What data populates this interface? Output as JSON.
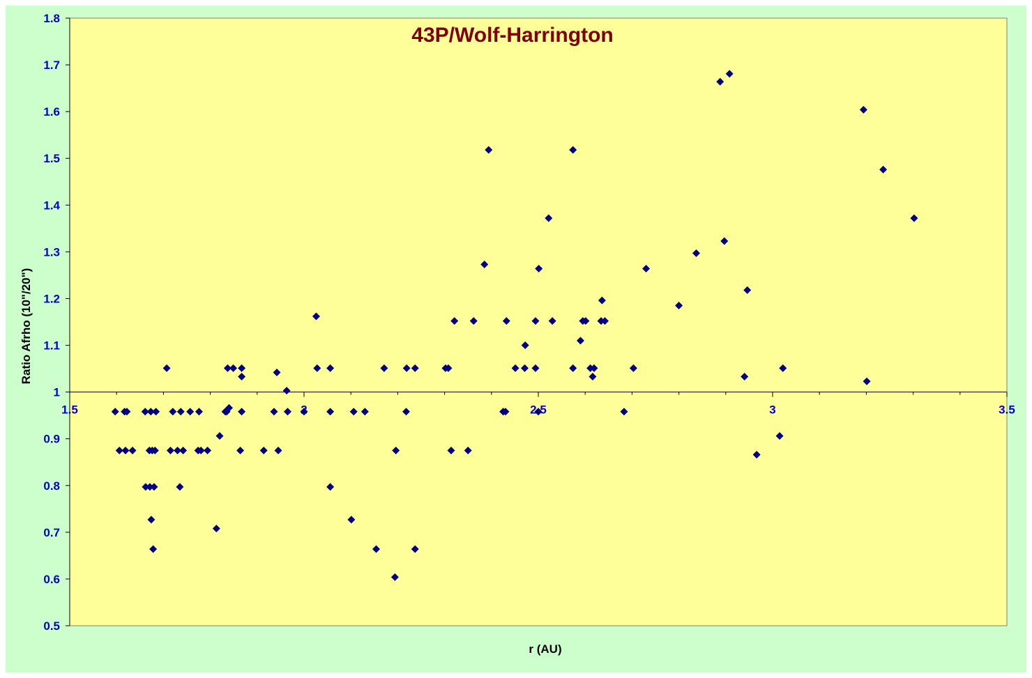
{
  "chart_data": {
    "type": "scatter",
    "title": "43P/Wolf-Harrington",
    "xlabel": "r (AU)",
    "ylabel": "Ratio Afrho (10\"/20\")",
    "xlim": [
      1.5,
      3.5
    ],
    "ylim": [
      0.5,
      1.8
    ],
    "x_ticks": [
      "1.5",
      "2",
      "2.5",
      "3",
      "3.5"
    ],
    "y_ticks": [
      "0.5",
      "0.6",
      "0.7",
      "0.8",
      "0.9",
      "1",
      "1.1",
      "1.2",
      "1.3",
      "1.4",
      "1.5",
      "1.6",
      "1.7",
      "1.8"
    ],
    "x_axis_crosses_y_at": 1.0,
    "grid": false,
    "legend": "none",
    "colors": {
      "marker": "#000080",
      "plot_background": "#ffff99",
      "chart_background": "#ccffcc",
      "title": "#800000",
      "tick_labels": "#0000cc"
    },
    "series": [
      {
        "marker": "diamond",
        "points": [
          [
            1.597,
            0.958
          ],
          [
            1.606,
            0.875
          ],
          [
            1.617,
            0.958
          ],
          [
            1.619,
            0.875
          ],
          [
            1.622,
            0.958
          ],
          [
            1.634,
            0.875
          ],
          [
            1.661,
            0.958
          ],
          [
            1.662,
            0.797
          ],
          [
            1.67,
            0.875
          ],
          [
            1.671,
            0.797
          ],
          [
            1.673,
            0.958
          ],
          [
            1.674,
            0.727
          ],
          [
            1.676,
            0.875
          ],
          [
            1.678,
            0.664
          ],
          [
            1.68,
            0.797
          ],
          [
            1.682,
            0.875
          ],
          [
            1.684,
            0.958
          ],
          [
            1.707,
            1.051
          ],
          [
            1.715,
            0.875
          ],
          [
            1.72,
            0.958
          ],
          [
            1.73,
            0.875
          ],
          [
            1.735,
            0.797
          ],
          [
            1.737,
            0.958
          ],
          [
            1.742,
            0.875
          ],
          [
            1.757,
            0.958
          ],
          [
            1.774,
            0.875
          ],
          [
            1.776,
            0.958
          ],
          [
            1.78,
            0.875
          ],
          [
            1.794,
            0.875
          ],
          [
            1.813,
            0.708
          ],
          [
            1.82,
            0.906
          ],
          [
            1.832,
            0.958
          ],
          [
            1.835,
            0.958
          ],
          [
            1.837,
            1.051
          ],
          [
            1.84,
            0.966
          ],
          [
            1.849,
            1.051
          ],
          [
            1.864,
            0.875
          ],
          [
            1.867,
            1.033
          ],
          [
            1.867,
            1.051
          ],
          [
            1.867,
            0.958
          ],
          [
            1.914,
            0.875
          ],
          [
            1.936,
            0.958
          ],
          [
            1.942,
            1.042
          ],
          [
            1.945,
            0.875
          ],
          [
            1.963,
            1.003
          ],
          [
            1.965,
            0.958
          ],
          [
            2.0,
            0.958
          ],
          [
            2.026,
            1.162
          ],
          [
            2.028,
            1.051
          ],
          [
            2.056,
            0.797
          ],
          [
            2.056,
            0.958
          ],
          [
            2.056,
            1.051
          ],
          [
            2.101,
            0.727
          ],
          [
            2.106,
            0.958
          ],
          [
            2.13,
            0.958
          ],
          [
            2.154,
            0.664
          ],
          [
            2.171,
            1.051
          ],
          [
            2.194,
            0.604
          ],
          [
            2.196,
            0.875
          ],
          [
            2.218,
            0.958
          ],
          [
            2.219,
            1.051
          ],
          [
            2.237,
            0.664
          ],
          [
            2.237,
            1.051
          ],
          [
            2.302,
            1.051
          ],
          [
            2.308,
            1.051
          ],
          [
            2.314,
            0.875
          ],
          [
            2.321,
            1.152
          ],
          [
            2.35,
            0.875
          ],
          [
            2.362,
            1.152
          ],
          [
            2.385,
            1.273
          ],
          [
            2.394,
            1.518
          ],
          [
            2.425,
            0.958
          ],
          [
            2.43,
            0.958
          ],
          [
            2.432,
            1.152
          ],
          [
            2.451,
            1.051
          ],
          [
            2.471,
            1.051
          ],
          [
            2.472,
            1.1
          ],
          [
            2.494,
            1.051
          ],
          [
            2.494,
            1.152
          ],
          [
            2.5,
            0.958
          ],
          [
            2.501,
            1.264
          ],
          [
            2.522,
            1.372
          ],
          [
            2.53,
            1.152
          ],
          [
            2.574,
            1.518
          ],
          [
            2.574,
            1.051
          ],
          [
            2.59,
            1.11
          ],
          [
            2.595,
            1.152
          ],
          [
            2.601,
            1.152
          ],
          [
            2.611,
            1.051
          ],
          [
            2.616,
            1.033
          ],
          [
            2.619,
            1.051
          ],
          [
            2.634,
            1.152
          ],
          [
            2.636,
            1.196
          ],
          [
            2.642,
            1.152
          ],
          [
            2.683,
            0.958
          ],
          [
            2.703,
            1.051
          ],
          [
            2.73,
            1.264
          ],
          [
            2.8,
            1.185
          ],
          [
            2.837,
            1.297
          ],
          [
            2.888,
            1.664
          ],
          [
            2.897,
            1.323
          ],
          [
            2.908,
            1.681
          ],
          [
            2.94,
            1.033
          ],
          [
            2.946,
            1.218
          ],
          [
            2.966,
            0.866
          ],
          [
            3.015,
            0.906
          ],
          [
            3.022,
            1.051
          ],
          [
            3.194,
            1.604
          ],
          [
            3.201,
            1.023
          ],
          [
            3.236,
            1.476
          ],
          [
            3.302,
            1.372
          ]
        ]
      }
    ]
  }
}
